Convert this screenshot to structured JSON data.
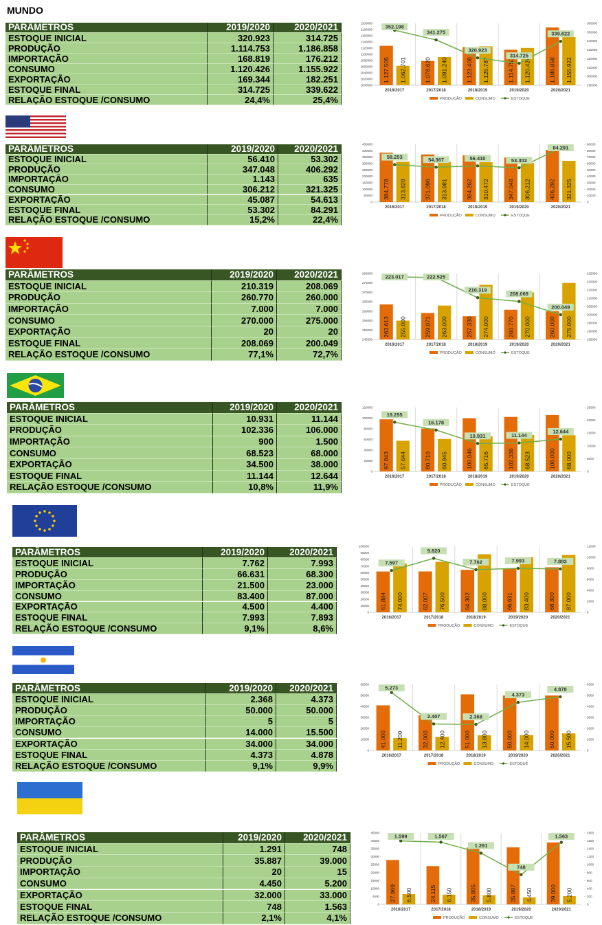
{
  "title": "MUNDO",
  "tables": [
    {
      "header": [
        "PARÂMETROS",
        "2019/2020",
        "2020/2021"
      ],
      "rows": [
        [
          "ESTOQUE INICIAL",
          "320.923",
          "314.725"
        ],
        [
          "PRODUÇÃO",
          "1.114.753",
          "1.186.858"
        ],
        [
          "IMPORTAÇÃO",
          "168.819",
          "176.212"
        ],
        [
          "CONSUMO",
          "1.120.426",
          "1.155.922"
        ],
        [
          "EXPORTAÇÃO",
          "169.344",
          "182.251"
        ],
        [
          "ESTOQUE FINAL",
          "314.725",
          "339.622"
        ],
        [
          "RELAÇÃO ESTOQUE /CONSUMO",
          "24,4%",
          "25,4%"
        ]
      ]
    },
    {
      "header": [
        "PARÂMETROS",
        "2019/2020",
        "2020/2021"
      ],
      "rows": [
        [
          "ESTOQUE INICIAL",
          "56.410",
          "53.302"
        ],
        [
          "PRODUÇÃO",
          "347.048",
          "406.292"
        ],
        [
          "IMPORTAÇÃO",
          "1.143",
          "635"
        ],
        [
          "CONSUMO",
          "306.212",
          "321.325"
        ],
        [
          "EXPORTAÇÃO",
          "45.087",
          "54.613"
        ],
        [
          "ESTOQUE FINAL",
          "53.302",
          "84.291"
        ],
        [
          "RELAÇÃO ESTOQUE /CONSUMO",
          "15,2%",
          "22,4%"
        ]
      ]
    },
    {
      "header": [
        "PARÂMETROS",
        "2019/2020",
        "2020/2021"
      ],
      "rows": [
        [
          "ESTOQUE INICIAL",
          "210.319",
          "208.069"
        ],
        [
          "PRODUÇÃO",
          "260.770",
          "260.000"
        ],
        [
          "IMPORTAÇÃO",
          "7.000",
          "7.000"
        ],
        [
          "CONSUMO",
          "270.000",
          "275.000"
        ],
        [
          "EXPORTAÇÃO",
          "20",
          "20"
        ],
        [
          "ESTOQUE FINAL",
          "208.069",
          "200.049"
        ],
        [
          "RELAÇÃO ESTOQUE /CONSUMO",
          "77,1%",
          "72,7%"
        ]
      ]
    },
    {
      "header": [
        "PARÂMETROS",
        "2019/2020",
        "2020/2021"
      ],
      "rows": [
        [
          "ESTOQUE INICIAL",
          "10.931",
          "11.144"
        ],
        [
          "PRODUÇÃO",
          "102.336",
          "106.000"
        ],
        [
          "IMPORTAÇÃO",
          "900",
          "1.500"
        ],
        [
          "CONSUMO",
          "68.523",
          "68.000"
        ],
        [
          "EXPORTAÇÃO",
          "34.500",
          "38.000"
        ],
        [
          "ESTOQUE FINAL",
          "11.144",
          "12.644"
        ],
        [
          "RELAÇÃO ESTOQUE /CONSUMO",
          "10,8%",
          "11,9%"
        ]
      ]
    },
    {
      "header": [
        "PARÂMETROS",
        "2019/2020",
        "2020/2021"
      ],
      "rows": [
        [
          "ESTOQUE INICIAL",
          "7.762",
          "7.993"
        ],
        [
          "PRODUÇÃO",
          "66.631",
          "68.300"
        ],
        [
          "IMPORTAÇÃO",
          "21.500",
          "23.000"
        ],
        [
          "CONSUMO",
          "83.400",
          "87.000"
        ],
        [
          "EXPORTAÇÃO",
          "4.500",
          "4.400"
        ],
        [
          "ESTOQUE FINAL",
          "7.993",
          "7.893"
        ],
        [
          "RELAÇÃO ESTOQUE /CONSUMO",
          "9,1%",
          "8,6%"
        ]
      ]
    },
    {
      "header": [
        "PARÂMETROS",
        "2019/2020",
        "2020/2021"
      ],
      "rows": [
        [
          "ESTOQUE INICIAL",
          "2.368",
          "4.373"
        ],
        [
          "PRODUÇÃO",
          "50.000",
          "50.000"
        ],
        [
          "IMPORTAÇÃO",
          "5",
          "5"
        ],
        [
          "CONSUMO",
          "14.000",
          "15.500"
        ],
        [
          "EXPORTAÇÃO",
          "34.000",
          "34.000"
        ],
        [
          "ESTOQUE FINAL",
          "4.373",
          "4.878"
        ],
        [
          "RELAÇÃO ESTOQUE /CONSUMO",
          "9,1%",
          "9,9%"
        ]
      ]
    },
    {
      "header": [
        "PARÂMETROS",
        "2019/2020",
        "2020/2021"
      ],
      "rows": [
        [
          "ESTOQUE INICIAL",
          "1.291",
          "748"
        ],
        [
          "PRODUÇÃO",
          "35.887",
          "39.000"
        ],
        [
          "IMPORTAÇÃO",
          "20",
          "15"
        ],
        [
          "CONSUMO",
          "4.450",
          "5.200"
        ],
        [
          "EXPORTAÇÃO",
          "32.000",
          "33.000"
        ],
        [
          "ESTOQUE FINAL",
          "748",
          "1.563"
        ],
        [
          "RELAÇÃO ESTOQUE /CONSUMO",
          "2,1%",
          "4,1%"
        ]
      ]
    }
  ],
  "chart_data": [
    {
      "type": "bar",
      "categories": [
        "2016/2017",
        "2017/2018",
        "2018/2019",
        "2019/2020",
        "2020/2021"
      ],
      "legend": "bottom",
      "series": [
        {
          "name": "PRODUÇÃO",
          "color": "#e36c09",
          "values": [
            1127505,
            1078620,
            1123408,
            1114753,
            1186858
          ],
          "value_labels": [
            "1.127.505",
            "1.078.620",
            "1.123.408",
            "1.114.753",
            "1.186.858"
          ]
        },
        {
          "name": "CONSUMO",
          "color": "#d8a300",
          "values": [
            1062701,
            1091240,
            1125787,
            1120426,
            1155922
          ],
          "value_labels": [
            "1.062.701",
            "1.091.240",
            "1.125.787",
            "1.120.426",
            "1.155.922"
          ]
        },
        {
          "name": "ESTOQUE",
          "color": "#70ad47",
          "type": "line",
          "axis": "y2",
          "values": [
            352198,
            341275,
            320923,
            314725,
            339622
          ],
          "value_labels": [
            "352.198",
            "341.275",
            "320.923",
            "314.725",
            "339.622"
          ]
        }
      ],
      "ylim": [
        1000000,
        1200000
      ],
      "yticks": [
        1000000,
        1020000,
        1040000,
        1060000,
        1080000,
        1100000,
        1120000,
        1140000,
        1160000,
        1180000,
        1200000
      ],
      "y2lim": [
        290000,
        360000
      ],
      "y2ticks": [
        290000,
        300000,
        310000,
        320000,
        330000,
        340000,
        350000,
        360000
      ]
    },
    {
      "type": "bar",
      "categories": [
        "2016/2017",
        "2017/2018",
        "2018/2019",
        "2019/2020",
        "2020/2021"
      ],
      "legend": "bottom",
      "series": [
        {
          "name": "PRODUÇÃO",
          "color": "#e36c09",
          "values": [
            384778,
            371096,
            364262,
            347048,
            406292
          ],
          "value_labels": [
            "384.778",
            "371.096",
            "364.262",
            "347.048",
            "406.292"
          ]
        },
        {
          "name": "CONSUMO",
          "color": "#d8a300",
          "values": [
            313828,
            313981,
            310472,
            306212,
            321325
          ],
          "value_labels": [
            "313.828",
            "313.981",
            "310.472",
            "306.212",
            "321.325"
          ]
        },
        {
          "name": "ESTOQUE",
          "color": "#70ad47",
          "type": "line",
          "axis": "y2",
          "values": [
            58253,
            54367,
            56410,
            53302,
            84291
          ],
          "value_labels": [
            "58.253",
            "54.367",
            "56.410",
            "53.302",
            "84.291"
          ]
        }
      ],
      "ylim": [
        0,
        450000
      ],
      "yticks": [
        0,
        50000,
        100000,
        150000,
        200000,
        250000,
        300000,
        350000,
        400000,
        450000
      ],
      "y2lim": [
        0,
        90000
      ],
      "y2ticks": [
        0,
        10000,
        20000,
        30000,
        40000,
        50000,
        60000,
        70000,
        80000,
        90000
      ]
    },
    {
      "type": "bar",
      "categories": [
        "2016/2017",
        "2017/2018",
        "2018/2019",
        "2019/2020",
        "2020/2021"
      ],
      "legend": "bottom",
      "series": [
        {
          "name": "PRODUÇÃO",
          "color": "#e36c09",
          "values": [
            263613,
            259071,
            257330,
            260770,
            260000
          ],
          "value_labels": [
            "263.613",
            "259.071",
            "257.330",
            "260.770",
            "260.000"
          ]
        },
        {
          "name": "CONSUMO",
          "color": "#d8a300",
          "values": [
            255000,
            263000,
            274000,
            270000,
            275000
          ],
          "value_labels": [
            "255.000",
            "263.000",
            "274.000",
            "270.000",
            "275.000"
          ]
        },
        {
          "name": "ESTOQUE",
          "color": "#70ad47",
          "type": "line",
          "axis": "y2",
          "values": [
            223017,
            222525,
            210319,
            208069,
            200049
          ],
          "value_labels": [
            "223.017",
            "222.525",
            "210.319",
            "208.069",
            "200.049"
          ]
        }
      ],
      "ylim": [
        245000,
        280000
      ],
      "yticks": [
        245000,
        250000,
        255000,
        260000,
        265000,
        270000,
        275000,
        280000
      ],
      "y2lim": [
        185000,
        225000
      ],
      "y2ticks": [
        185000,
        190000,
        195000,
        200000,
        205000,
        210000,
        215000,
        220000,
        225000
      ]
    },
    {
      "type": "bar",
      "categories": [
        "2016/2017",
        "2017/2018",
        "2018/2019",
        "2019/2020",
        "2020/2021"
      ],
      "legend": "bottom",
      "series": [
        {
          "name": "PRODUÇÃO",
          "color": "#e36c09",
          "values": [
            97843,
            80710,
            100046,
            102336,
            106000
          ],
          "value_labels": [
            "97.843",
            "80.710",
            "100.046",
            "102.336",
            "106.000"
          ]
        },
        {
          "name": "CONSUMO",
          "color": "#d8a300",
          "values": [
            57644,
            60945,
            65716,
            68523,
            68000
          ],
          "value_labels": [
            "57.644",
            "60.945",
            "65.716",
            "68.523",
            "68.000"
          ]
        },
        {
          "name": "ESTOQUE",
          "color": "#70ad47",
          "type": "line",
          "axis": "y2",
          "values": [
            19255,
            16178,
            10931,
            11144,
            12644
          ],
          "value_labels": [
            "19.255",
            "16.178",
            "10.931",
            "11.144",
            "12.644"
          ]
        }
      ],
      "ylim": [
        0,
        120000
      ],
      "yticks": [
        0,
        20000,
        40000,
        60000,
        80000,
        100000,
        120000
      ],
      "y2lim": [
        0,
        25000
      ],
      "y2ticks": [
        0,
        5000,
        10000,
        15000,
        20000,
        25000
      ]
    },
    {
      "type": "bar",
      "categories": [
        "2016/2017",
        "2017/2018",
        "2018/2019",
        "2019/2020",
        "2020/2021"
      ],
      "legend": "bottom",
      "series": [
        {
          "name": "PRODUÇÃO",
          "color": "#e36c09",
          "values": [
            61884,
            62007,
            64362,
            66631,
            68300
          ],
          "value_labels": [
            "61.884",
            "62.007",
            "64.362",
            "66.631",
            "68.300"
          ]
        },
        {
          "name": "CONSUMO",
          "color": "#d8a300",
          "values": [
            74000,
            76500,
            88000,
            83400,
            87000
          ],
          "value_labels": [
            "74.000",
            "76.500",
            "88.000",
            "83.400",
            "87.000"
          ]
        },
        {
          "name": "ESTOQUE",
          "color": "#70ad47",
          "type": "line",
          "axis": "y2",
          "values": [
            7597,
            9820,
            7762,
            7993,
            7893
          ],
          "value_labels": [
            "7.597",
            "9.820",
            "7.762",
            "7.993",
            "7.893"
          ]
        }
      ],
      "ylim": [
        0,
        100000
      ],
      "yticks": [
        0,
        10000,
        20000,
        30000,
        40000,
        50000,
        60000,
        70000,
        80000,
        90000,
        100000
      ],
      "y2lim": [
        0,
        12000
      ],
      "y2ticks": [
        0,
        2000,
        4000,
        6000,
        8000,
        10000,
        12000
      ]
    },
    {
      "type": "bar",
      "categories": [
        "2016/2017",
        "2017/2018",
        "2018/2019",
        "2019/2020",
        "2020/2021"
      ],
      "legend": "bottom",
      "series": [
        {
          "name": "PRODUÇÃO",
          "color": "#e36c09",
          "values": [
            41000,
            32000,
            51000,
            50000,
            50000
          ],
          "value_labels": [
            "41.000",
            "32.000",
            "51.000",
            "50.000",
            "50.000"
          ]
        },
        {
          "name": "CONSUMO",
          "color": "#d8a300",
          "values": [
            11200,
            12400,
            13800,
            14000,
            15500
          ],
          "value_labels": [
            "11.200",
            "12.400",
            "13.800",
            "14.000",
            "15.500"
          ]
        },
        {
          "name": "ESTOQUE",
          "color": "#70ad47",
          "type": "line",
          "axis": "y2",
          "values": [
            5273,
            2407,
            2368,
            4373,
            4878
          ],
          "value_labels": [
            "5.273",
            "2.407",
            "2.368",
            "4.373",
            "4.878"
          ]
        }
      ],
      "ylim": [
        0,
        60000
      ],
      "yticks": [
        0,
        10000,
        20000,
        30000,
        40000,
        50000,
        60000
      ],
      "y2lim": [
        0,
        6000
      ],
      "y2ticks": [
        0,
        1000,
        2000,
        3000,
        4000,
        5000,
        6000
      ]
    },
    {
      "type": "bar",
      "categories": [
        "2016/2017",
        "2017/2018",
        "2018/2019",
        "2019/2020",
        "2020/2021"
      ],
      "legend": "bottom",
      "series": [
        {
          "name": "PRODUÇÃO",
          "color": "#e36c09",
          "values": [
            27969,
            24115,
            35805,
            35887,
            39000
          ],
          "value_labels": [
            "27.969",
            "24.115",
            "35.805",
            "35.887",
            "39.000"
          ]
        },
        {
          "name": "CONSUMO",
          "color": "#d8a300",
          "values": [
            6500,
            6150,
            5800,
            4450,
            5200
          ],
          "value_labels": [
            "6.500",
            "6.150",
            "5.800",
            "4.450",
            "5.200"
          ]
        },
        {
          "name": "ESTOQUE",
          "color": "#70ad47",
          "type": "line",
          "axis": "y2",
          "values": [
            1599,
            1567,
            1291,
            748,
            1563
          ],
          "value_labels": [
            "1.599",
            "1.567",
            "1.291",
            "748",
            "1.563"
          ]
        }
      ],
      "ylim": [
        0,
        45000
      ],
      "yticks": [
        0,
        5000,
        10000,
        15000,
        20000,
        25000,
        30000,
        35000,
        40000,
        45000
      ],
      "y2lim": [
        0,
        1800
      ],
      "y2ticks": [
        0,
        200,
        400,
        600,
        800,
        1000,
        1200,
        1400,
        1600,
        1800
      ]
    }
  ]
}
